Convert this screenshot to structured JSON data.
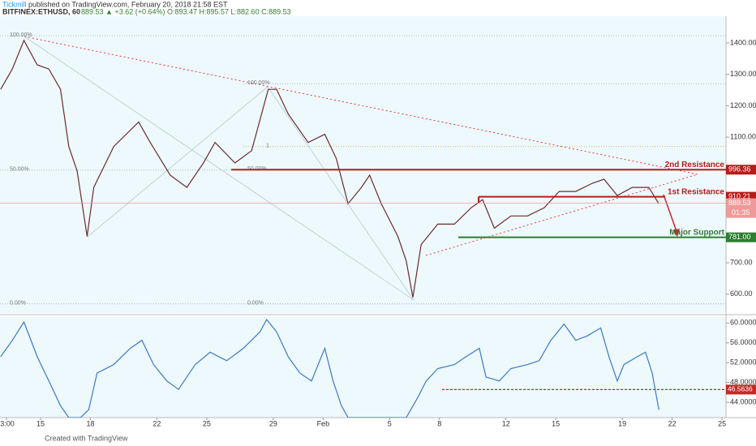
{
  "header": {
    "publisher": "Tickmill",
    "published": "published on TradingView.com, February 20, 2018 21:58 EST",
    "symbol": "BITFINEX:ETHUSD, 60",
    "quote": "889.53 ▲ +3.62 (+0.64%) O:893.47 H:895.57 L:882.60 C:889.53"
  },
  "chart_data": [
    {
      "type": "line",
      "color": "#6d2b2b",
      "x": [
        -2.4,
        -1.7,
        -1.0,
        -0.2,
        0.5,
        1.2,
        1.7,
        2.2,
        2.8,
        3.2,
        4.4,
        5.9,
        6.6,
        7.8,
        8.8,
        9.8,
        10.5,
        11.7,
        12.7,
        13.7,
        14.2,
        14.9,
        16.1,
        17.1,
        17.8,
        18.5,
        19.3,
        19.8,
        20.5,
        21.5,
        22.0,
        22.4,
        22.9,
        23.9,
        24.9,
        25.9,
        26.6,
        27.3,
        28.3,
        29.3,
        30.3,
        31.2,
        32.2,
        33.2,
        33.9,
        34.7,
        35.6,
        36.6,
        37.2
      ],
      "values": [
        1252,
        1317,
        1408,
        1330,
        1317,
        1252,
        1070,
        992,
        784,
        940,
        1070,
        1148,
        1083,
        979,
        940,
        1018,
        1083,
        1018,
        1057,
        1252,
        1252,
        1174,
        1083,
        1109,
        1031,
        888,
        940,
        979,
        888,
        784,
        706,
        590,
        758,
        823,
        823,
        875,
        901,
        810,
        849,
        849,
        875,
        927,
        927,
        953,
        966,
        914,
        940,
        940,
        888
      ],
      "xlim": [
        -2.44,
        41.24
      ],
      "xticks": [
        {
          "value": -2.05,
          "label": "3:00"
        },
        {
          "value": 0,
          "label": "15"
        },
        {
          "value": 3,
          "label": "18"
        },
        {
          "value": 7,
          "label": "22"
        },
        {
          "value": 10,
          "label": "25"
        },
        {
          "value": 14,
          "label": "29"
        },
        {
          "value": 17,
          "label": "Feb"
        },
        {
          "value": 21,
          "label": "5"
        },
        {
          "value": 24,
          "label": "8"
        },
        {
          "value": 28,
          "label": "12"
        },
        {
          "value": 31,
          "label": "15"
        },
        {
          "value": 35,
          "label": "19"
        },
        {
          "value": 38,
          "label": "22"
        },
        {
          "value": 41,
          "label": "25"
        }
      ],
      "ylim": [
        540,
        1485
      ],
      "yticks": [
        {
          "value": 600,
          "label": "600.00"
        },
        {
          "value": 700,
          "label": "700.00"
        },
        {
          "value": 1100,
          "label": "1100.00"
        },
        {
          "value": 1200,
          "label": "1200.00"
        },
        {
          "value": 1300,
          "label": "1300.00"
        },
        {
          "value": 1400,
          "label": "1400.00"
        }
      ],
      "levels": [
        {
          "label": "2nd Resistance",
          "value": 996.36,
          "value_label": "996.36",
          "color": "#b71c1c"
        },
        {
          "label": "1st Resistance",
          "value": 910.21,
          "value_label": "910.21",
          "color": "#b71c1c"
        },
        {
          "label": "Major Support",
          "value": 781,
          "value_label": "781.00",
          "color": "#2e7d32"
        }
      ],
      "last_price": {
        "value": 889.53,
        "value_label": "889.53",
        "countdown": "01:35",
        "color": "#ef9a9a"
      },
      "fib_levels": [
        {
          "label": "100.00%",
          "value": 1423
        },
        {
          "label": "50.00%",
          "value": 995
        },
        {
          "label": "0.00%",
          "value": 569
        },
        {
          "label": "100.00%",
          "value": 1270
        },
        {
          "label": "1",
          "value": 1070
        },
        {
          "label": "50.00%",
          "value": 997
        },
        {
          "label": "0.00%",
          "value": 569
        }
      ]
    },
    {
      "type": "line",
      "color": "#3a78c3",
      "x": [
        -2.4,
        -1.7,
        -1.0,
        -0.2,
        0.5,
        1.2,
        1.7,
        2.4,
        2.9,
        3.4,
        4.4,
        5.4,
        6.1,
        6.8,
        7.6,
        8.3,
        9.3,
        10.2,
        11.2,
        12.2,
        13.2,
        13.6,
        14.2,
        14.9,
        15.6,
        16.3,
        17.1,
        17.6,
        18.1,
        18.5,
        20.0,
        22.0,
        22.7,
        23.2,
        23.9,
        24.9,
        25.6,
        26.4,
        26.8,
        27.6,
        28.3,
        29.3,
        30.0,
        30.7,
        31.5,
        32.2,
        32.9,
        33.7,
        34.2,
        34.7,
        35.1,
        35.9,
        36.4,
        36.8,
        37.2
      ],
      "values": [
        53.2,
        56.5,
        60.2,
        53.2,
        48.3,
        43.3,
        40.9,
        40.9,
        42.5,
        49.9,
        51.6,
        54.9,
        56.5,
        51.6,
        48.3,
        46.6,
        51.6,
        54.1,
        52.4,
        54.9,
        58.2,
        60.7,
        58.2,
        53.2,
        49.9,
        48.3,
        54.9,
        48.3,
        43.3,
        40.9,
        40.9,
        40.9,
        45.0,
        48.3,
        50.8,
        51.6,
        53.2,
        54.9,
        49.1,
        48.3,
        50.8,
        51.6,
        52.4,
        56.5,
        59.8,
        56.5,
        57.4,
        59.0,
        53.2,
        48.3,
        51.6,
        53.2,
        54.1,
        49.9,
        42.5
      ],
      "xlim": [
        -2.44,
        41.24
      ],
      "ylim": [
        40.9,
        61.2
      ],
      "yticks": [
        {
          "value": 44,
          "label": "44.0000"
        },
        {
          "value": 48,
          "label": "48.0000"
        },
        {
          "value": 52,
          "label": "52.0000"
        },
        {
          "value": 56,
          "label": "56.0000"
        },
        {
          "value": 60,
          "label": "60.0000"
        }
      ],
      "level": {
        "value": 46.5636,
        "value_label": "46.5636",
        "color": "#c62828"
      }
    }
  ],
  "footer": "Created with TradingView"
}
